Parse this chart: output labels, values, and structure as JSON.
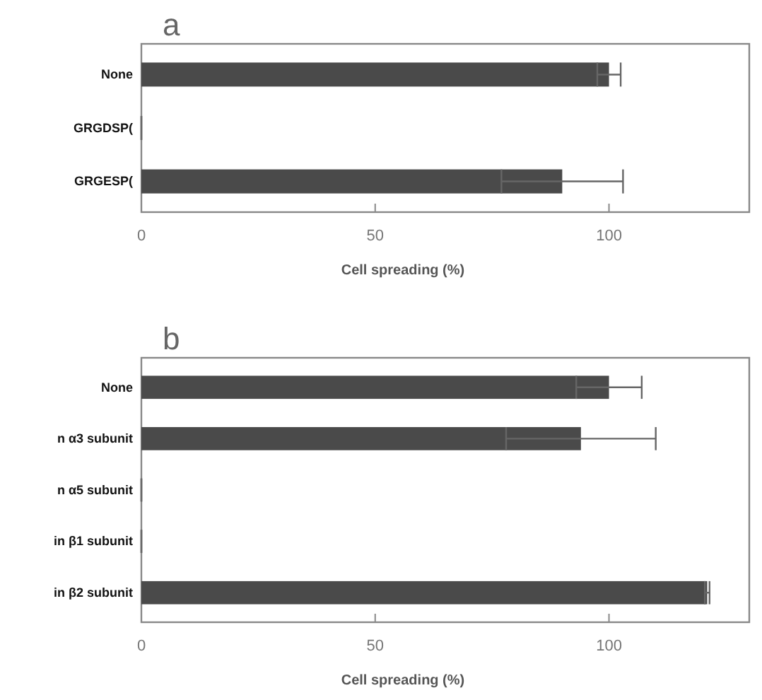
{
  "chart_data": [
    {
      "type": "bar",
      "orientation": "horizontal",
      "title": "a",
      "xlabel": "Cell spreading  (%)",
      "categories": [
        "None",
        "GRGDSP(",
        "GRGESP("
      ],
      "values": [
        100,
        0,
        90
      ],
      "errors": [
        2.5,
        0,
        13
      ],
      "color": "#4a4a4a",
      "xlim": [
        0,
        130
      ],
      "xticks": [
        0,
        50,
        100
      ]
    },
    {
      "type": "bar",
      "orientation": "horizontal",
      "title": "b",
      "xlabel": "Cell spreading  (%)",
      "categories": [
        "None",
        "n α3 subunit",
        "n α5 subunit",
        "in β1 subunit",
        "in β2 subunit"
      ],
      "values": [
        100,
        94,
        0,
        0,
        121
      ],
      "errors": [
        7,
        16,
        0,
        0,
        0.5
      ],
      "color": "#4a4a4a",
      "xlim": [
        0,
        130
      ],
      "xticks": [
        0,
        50,
        100
      ]
    }
  ]
}
